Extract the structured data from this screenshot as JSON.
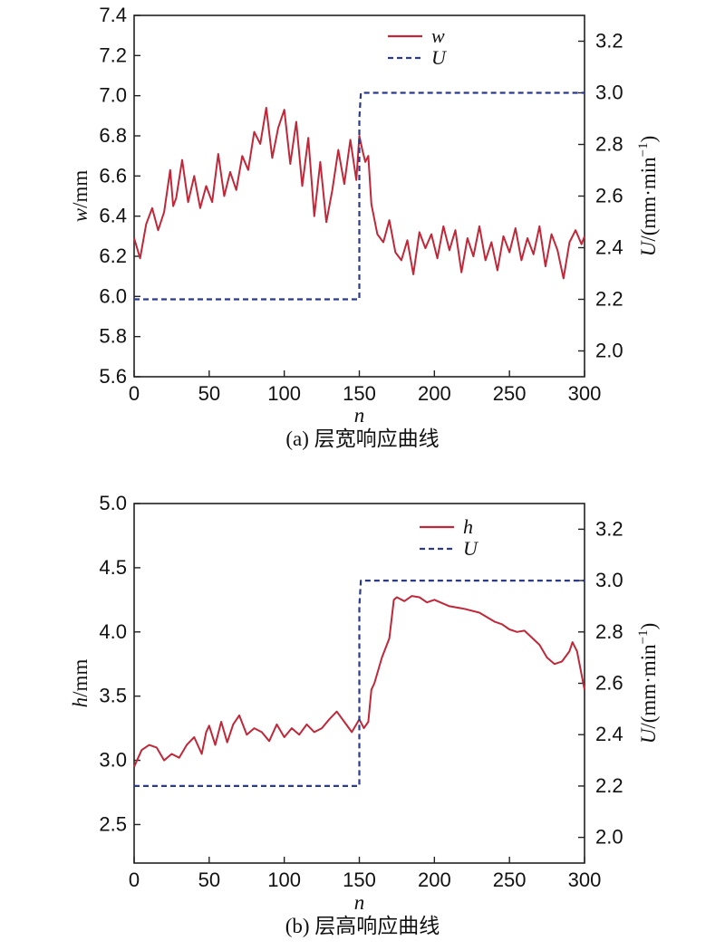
{
  "chart_data": [
    {
      "type": "line",
      "caption": "(a) 层宽响应曲线",
      "xlabel": "n",
      "ylabel_var": "w",
      "ylabel_unit": "/mm",
      "y2label_var": "U",
      "y2label_unit": "/(mm·min",
      "y2label_exp": "−1",
      "y2label_close": ")",
      "xlim": [
        0,
        300
      ],
      "ylim": [
        5.6,
        7.4
      ],
      "y2lim": [
        1.9,
        3.3
      ],
      "x_ticks": [
        0,
        50,
        100,
        150,
        200,
        250,
        300
      ],
      "y_ticks": [
        "5.6",
        "5.8",
        "6.0",
        "6.2",
        "6.4",
        "6.6",
        "6.8",
        "7.0",
        "7.2",
        "7.4"
      ],
      "y2_ticks": [
        "2.0",
        "2.2",
        "2.4",
        "2.6",
        "2.8",
        "3.0",
        "3.2"
      ],
      "legend": [
        "w",
        "U"
      ],
      "legend_position": "top-center",
      "colors": {
        "w": "#c0283a",
        "U": "#2b3a8c"
      },
      "series": [
        {
          "name": "w",
          "axis": "left",
          "style": "solid",
          "x": [
            0,
            4,
            8,
            12,
            16,
            20,
            24,
            26,
            28,
            32,
            36,
            40,
            44,
            48,
            52,
            56,
            60,
            64,
            68,
            72,
            76,
            80,
            84,
            88,
            92,
            96,
            100,
            104,
            108,
            112,
            116,
            120,
            124,
            128,
            132,
            136,
            140,
            144,
            148,
            150,
            152,
            154,
            156,
            158,
            162,
            166,
            170,
            174,
            178,
            182,
            186,
            190,
            194,
            198,
            202,
            206,
            210,
            214,
            218,
            222,
            226,
            230,
            234,
            238,
            242,
            246,
            250,
            254,
            258,
            262,
            266,
            270,
            274,
            278,
            282,
            286,
            290,
            294,
            298,
            300
          ],
          "values": [
            6.29,
            6.19,
            6.36,
            6.44,
            6.33,
            6.42,
            6.63,
            6.45,
            6.49,
            6.68,
            6.47,
            6.6,
            6.44,
            6.55,
            6.47,
            6.71,
            6.5,
            6.62,
            6.53,
            6.7,
            6.63,
            6.82,
            6.76,
            6.94,
            6.69,
            6.84,
            6.93,
            6.66,
            6.87,
            6.55,
            6.79,
            6.4,
            6.67,
            6.37,
            6.53,
            6.73,
            6.56,
            6.78,
            6.58,
            6.8,
            6.73,
            6.67,
            6.7,
            6.46,
            6.31,
            6.27,
            6.38,
            6.22,
            6.18,
            6.28,
            6.11,
            6.32,
            6.24,
            6.31,
            6.19,
            6.35,
            6.23,
            6.33,
            6.12,
            6.29,
            6.2,
            6.35,
            6.18,
            6.27,
            6.13,
            6.3,
            6.22,
            6.34,
            6.18,
            6.29,
            6.21,
            6.35,
            6.15,
            6.31,
            6.23,
            6.09,
            6.27,
            6.33,
            6.26,
            6.3
          ]
        },
        {
          "name": "U",
          "axis": "right",
          "style": "dashed",
          "x": [
            0,
            150,
            150,
            151,
            300
          ],
          "values": [
            2.2,
            2.2,
            2.9,
            3.0,
            3.0
          ]
        }
      ]
    },
    {
      "type": "line",
      "caption": "(b) 层高响应曲线",
      "xlabel": "n",
      "ylabel_var": "h",
      "ylabel_unit": "/mm",
      "y2label_var": "U",
      "y2label_unit": "/(mm·min",
      "y2label_exp": "−1",
      "y2label_close": ")",
      "xlim": [
        0,
        300
      ],
      "ylim": [
        2.2,
        5.0
      ],
      "y2lim": [
        1.9,
        3.3
      ],
      "x_ticks": [
        0,
        50,
        100,
        150,
        200,
        250,
        300
      ],
      "y_ticks": [
        "2.5",
        "3.0",
        "3.5",
        "4.0",
        "4.5",
        "5.0"
      ],
      "y2_ticks": [
        "2.0",
        "2.2",
        "2.4",
        "2.6",
        "2.8",
        "3.0",
        "3.2"
      ],
      "legend": [
        "h",
        "U"
      ],
      "legend_position": "top-right",
      "colors": {
        "h": "#c0283a",
        "U": "#2b3a8c"
      },
      "series": [
        {
          "name": "h",
          "axis": "left",
          "style": "solid",
          "x": [
            0,
            5,
            10,
            15,
            20,
            25,
            30,
            35,
            40,
            45,
            48,
            50,
            54,
            58,
            62,
            66,
            70,
            75,
            80,
            85,
            90,
            95,
            100,
            105,
            110,
            115,
            120,
            125,
            130,
            135,
            140,
            145,
            150,
            153,
            156,
            158,
            160,
            165,
            170,
            173,
            175,
            180,
            185,
            190,
            195,
            200,
            210,
            220,
            230,
            240,
            245,
            250,
            255,
            260,
            270,
            275,
            280,
            285,
            290,
            292,
            295,
            300
          ],
          "values": [
            2.95,
            3.08,
            3.12,
            3.1,
            3.0,
            3.05,
            3.02,
            3.12,
            3.18,
            3.05,
            3.22,
            3.27,
            3.12,
            3.3,
            3.14,
            3.28,
            3.35,
            3.2,
            3.25,
            3.22,
            3.15,
            3.28,
            3.18,
            3.25,
            3.2,
            3.28,
            3.22,
            3.25,
            3.32,
            3.38,
            3.3,
            3.22,
            3.32,
            3.25,
            3.3,
            3.55,
            3.6,
            3.8,
            3.95,
            4.25,
            4.27,
            4.24,
            4.28,
            4.27,
            4.23,
            4.25,
            4.2,
            4.18,
            4.15,
            4.08,
            4.06,
            4.02,
            4.0,
            4.01,
            3.9,
            3.8,
            3.75,
            3.77,
            3.85,
            3.92,
            3.85,
            3.55
          ]
        },
        {
          "name": "U",
          "axis": "right",
          "style": "dashed",
          "x": [
            0,
            150,
            150,
            151,
            300
          ],
          "values": [
            2.2,
            2.2,
            2.9,
            3.0,
            3.0
          ]
        }
      ]
    }
  ]
}
